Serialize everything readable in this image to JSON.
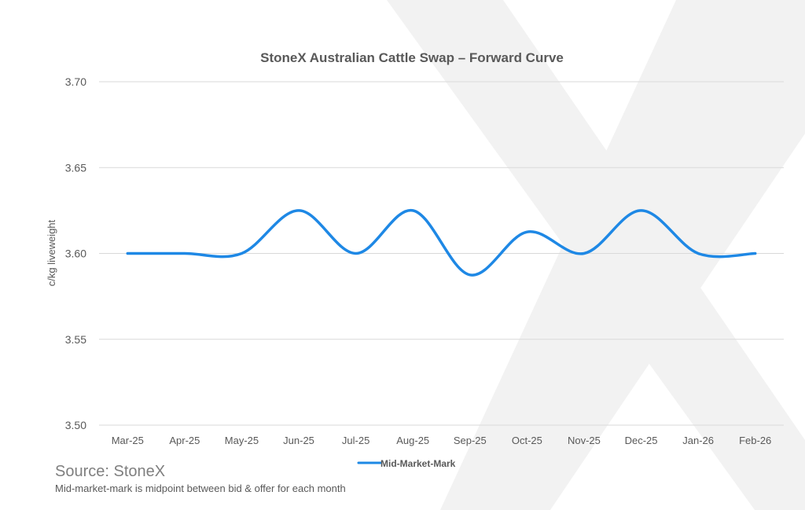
{
  "chart_data": {
    "type": "line",
    "title": "StoneX Australian Cattle Swap – Forward Curve",
    "xlabel": "",
    "ylabel": "c/kg liveweight",
    "categories": [
      "Mar-25",
      "Apr-25",
      "May-25",
      "Jun-25",
      "Jul-25",
      "Aug-25",
      "Sep-25",
      "Oct-25",
      "Nov-25",
      "Dec-25",
      "Jan-26",
      "Feb-26"
    ],
    "series": [
      {
        "name": "Mid-Market-Mark",
        "values": [
          3.6,
          3.6,
          3.6,
          3.625,
          3.6,
          3.625,
          3.5875,
          3.6125,
          3.6,
          3.625,
          3.6,
          3.6
        ]
      }
    ],
    "ylim": [
      3.5,
      3.7
    ],
    "yticks": [
      "3.50",
      "3.55",
      "3.60",
      "3.65",
      "3.70"
    ],
    "grid": "horizontal",
    "legend": "bottom",
    "smooth": true,
    "line_color": "#1e88e5",
    "grid_color": "#d9d9d9",
    "watermark": "large light-grey X logo"
  },
  "footer": {
    "source": "Source: StoneX",
    "note": "Mid-market-mark is midpoint between bid & offer for each month"
  }
}
